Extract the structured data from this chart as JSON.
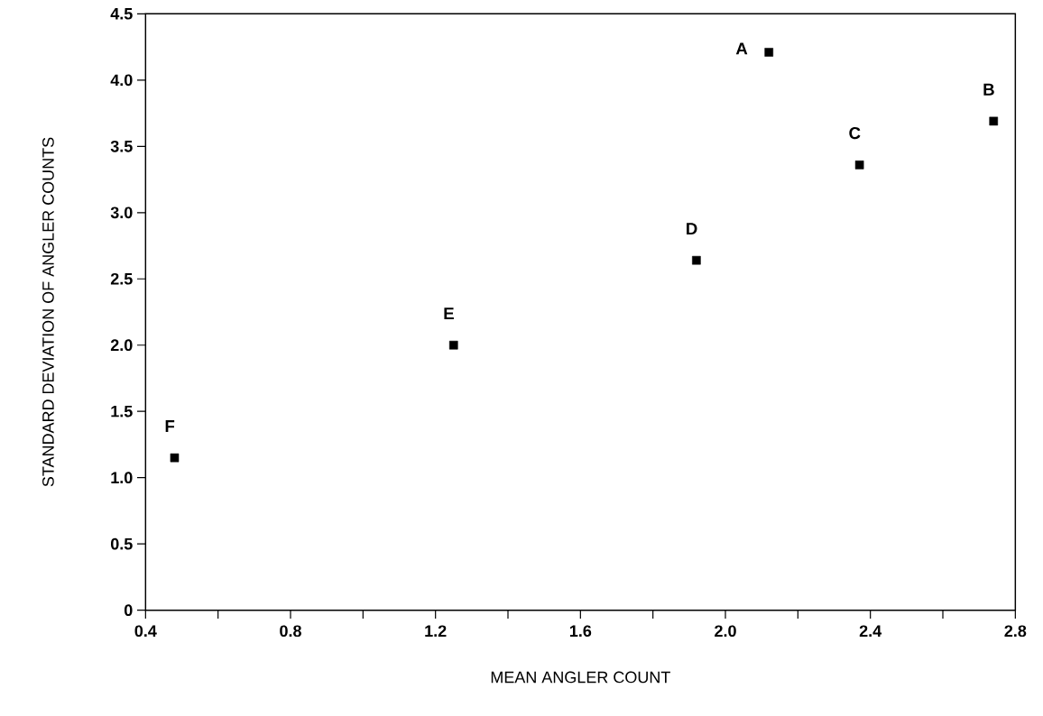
{
  "chart_data": {
    "type": "scatter",
    "xlabel": "MEAN ANGLER COUNT",
    "ylabel": "STANDARD DEVIATION OF ANGLER COUNTS",
    "x": [
      2.12,
      2.74,
      2.37,
      1.92,
      1.25,
      0.48
    ],
    "values": [
      4.21,
      3.69,
      3.36,
      2.64,
      2.0,
      1.15
    ],
    "color": "#000000",
    "marker": "square",
    "annotations": [
      {
        "text": "A",
        "x": 2.12,
        "y": 4.21
      },
      {
        "text": "B",
        "x": 2.74,
        "y": 3.69
      },
      {
        "text": "C",
        "x": 2.37,
        "y": 3.36
      },
      {
        "text": "D",
        "x": 1.92,
        "y": 2.64
      },
      {
        "text": "E",
        "x": 1.25,
        "y": 2.0
      },
      {
        "text": "F",
        "x": 0.48,
        "y": 1.15
      }
    ],
    "xlim": [
      0.4,
      2.8
    ],
    "xticks": [
      0.4,
      {
        "value": 0.6,
        "label": null
      },
      0.8,
      {
        "value": 1.0,
        "label": null
      },
      1.2,
      {
        "value": 1.4,
        "label": null
      },
      1.6,
      {
        "value": 1.8,
        "label": null
      },
      {
        "value": 2.0,
        "label": "2.0"
      },
      {
        "value": 2.2,
        "label": null
      },
      2.4,
      {
        "value": 2.6,
        "label": null
      },
      2.8
    ],
    "ylim": [
      0,
      4.5
    ],
    "yticks": [
      0,
      0.5,
      {
        "value": 1.0,
        "label": "1.0"
      },
      1.5,
      {
        "value": 2.0,
        "label": "2.0"
      },
      2.5,
      {
        "value": 3.0,
        "label": "3.0"
      },
      3.5,
      {
        "value": 4.0,
        "label": "4.0"
      },
      4.5
    ],
    "grid": false
  }
}
